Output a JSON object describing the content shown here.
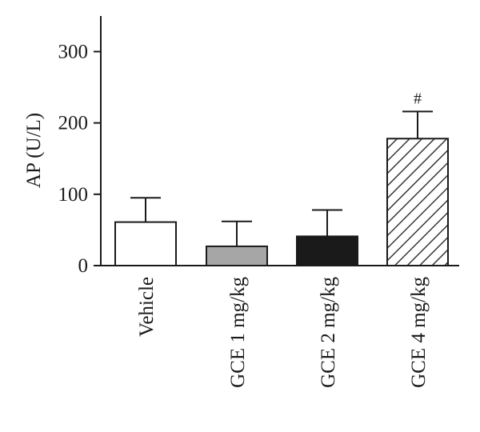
{
  "chart_data": {
    "type": "bar",
    "ylabel": "AP (U/L)",
    "xlabel": "",
    "ylim": [
      0,
      350
    ],
    "yticks": [
      0,
      100,
      200,
      300
    ],
    "grid": false,
    "categories": [
      "Vehicle",
      "GCE 1 mg/kg",
      "GCE 2 mg/kg",
      "GCE 4 mg/kg"
    ],
    "values": [
      61,
      27,
      41,
      178
    ],
    "errors": [
      34,
      35,
      37,
      38
    ],
    "bar_fills": [
      "white",
      "gray",
      "black",
      "hatched"
    ],
    "annotations": [
      "",
      "",
      "",
      "#"
    ],
    "colors": {
      "gray": "#a6a6a6",
      "black": "#1a1a1a",
      "stroke": "#1a1a1a"
    }
  }
}
